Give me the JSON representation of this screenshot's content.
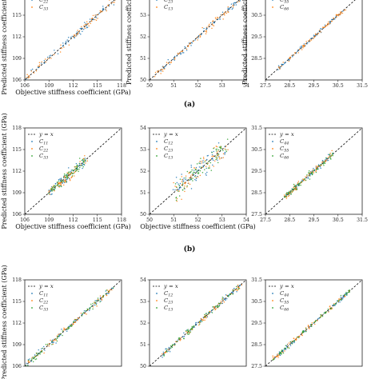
{
  "figure": {
    "row_labels": [
      "(a)",
      "(b)"
    ]
  },
  "colors": {
    "c1": "#1f77b4",
    "c2": "#ff7f0e",
    "c3": "#2ca02c",
    "identity": "#000000"
  },
  "chart_data": [
    {
      "type": "scatter",
      "row": 0,
      "col": 0,
      "xlabel": "Objective stiffness coefficient (GPa)",
      "ylabel": "Predicted stiffness coefficient (GPa)",
      "xlim": [
        106,
        118
      ],
      "ylim": [
        106,
        118
      ],
      "xticks": [
        "106",
        "109",
        "112",
        "115",
        "118"
      ],
      "yticks": [
        "106",
        "109",
        "112",
        "115"
      ],
      "legend": [
        "C22",
        "C33"
      ],
      "series": [
        {
          "name": "C22",
          "range": [
            106,
            118
          ],
          "spread": 0.35
        },
        {
          "name": "C33",
          "range": [
            106,
            118
          ],
          "spread": 0.35
        }
      ]
    },
    {
      "type": "scatter",
      "row": 0,
      "col": 1,
      "xlabel": "",
      "ylabel": "Predicted stiffness coefficient",
      "xlim": [
        50,
        54
      ],
      "ylim": [
        50,
        54
      ],
      "xticks": [
        "50",
        "51",
        "52",
        "53",
        "54"
      ],
      "yticks": [
        "50",
        "51",
        "52",
        "53"
      ],
      "legend": [
        "C23",
        "C13"
      ],
      "series": [
        {
          "name": "C23",
          "range": [
            50.2,
            54
          ],
          "spread": 0.12
        },
        {
          "name": "C13",
          "range": [
            50.2,
            54
          ],
          "spread": 0.12
        }
      ]
    },
    {
      "type": "scatter",
      "row": 0,
      "col": 2,
      "xlabel": "",
      "ylabel": "Predicted stiffness coefficient",
      "xlim": [
        27.5,
        31.5
      ],
      "ylim": [
        27.5,
        31.5
      ],
      "xticks": [
        "27.5",
        "28.5",
        "29.5",
        "30.5",
        "31.5"
      ],
      "yticks": [
        "28.5",
        "29.5",
        "30.5"
      ],
      "legend": [
        "C55",
        "C66"
      ],
      "series": [
        {
          "name": "C55",
          "range": [
            28,
            30.8
          ],
          "spread": 0.06
        },
        {
          "name": "C66",
          "range": [
            28,
            30.8
          ],
          "spread": 0.06
        }
      ]
    },
    {
      "type": "scatter",
      "row": 1,
      "col": 0,
      "xlabel": "Objective stiffness coefficient (GPa)",
      "ylabel": "Predicted stiffness coefficient (GPa)",
      "xlim": [
        106,
        118
      ],
      "ylim": [
        106,
        118
      ],
      "xticks": [
        "106",
        "109",
        "112",
        "115",
        "118"
      ],
      "yticks": [
        "106",
        "109",
        "112",
        "115",
        "118"
      ],
      "legend": [
        "y = x",
        "C11",
        "C22",
        "C33"
      ],
      "series": [
        {
          "name": "C11",
          "range": [
            109,
            113.5
          ],
          "spread": 0.5
        },
        {
          "name": "C22",
          "range": [
            109,
            113.5
          ],
          "spread": 0.5
        },
        {
          "name": "C33",
          "range": [
            109,
            113.5
          ],
          "spread": 0.5
        }
      ]
    },
    {
      "type": "scatter",
      "row": 1,
      "col": 1,
      "xlabel": "Objective stiffness coefficient (GPa)",
      "ylabel": "",
      "xlim": [
        50,
        54
      ],
      "ylim": [
        50,
        54
      ],
      "xticks": [
        "50",
        "51",
        "52",
        "53",
        "54"
      ],
      "yticks": [
        "50",
        "51",
        "52",
        "53",
        "54"
      ],
      "legend": [
        "y = x",
        "C12",
        "C23",
        "C13"
      ],
      "series": [
        {
          "name": "C12",
          "range": [
            51,
            53.2
          ],
          "spread": 0.35
        },
        {
          "name": "C23",
          "range": [
            51,
            53.2
          ],
          "spread": 0.35
        },
        {
          "name": "C13",
          "range": [
            51,
            53.2
          ],
          "spread": 0.35
        }
      ]
    },
    {
      "type": "scatter",
      "row": 1,
      "col": 2,
      "xlabel": "",
      "ylabel": "",
      "xlim": [
        27.5,
        31.5
      ],
      "ylim": [
        27.5,
        31.5
      ],
      "xticks": [
        "27.5",
        "28.5",
        "29.5",
        "30.5",
        "31.5"
      ],
      "yticks": [
        "27.5",
        "28.5",
        "29.5",
        "30.5",
        "31.5"
      ],
      "legend": [
        "y = x",
        "C44",
        "C55",
        "C66"
      ],
      "series": [
        {
          "name": "C44",
          "range": [
            28.3,
            30.3
          ],
          "spread": 0.1
        },
        {
          "name": "C55",
          "range": [
            28.3,
            30.3
          ],
          "spread": 0.1
        },
        {
          "name": "C66",
          "range": [
            28.3,
            30.3
          ],
          "spread": 0.1
        }
      ]
    },
    {
      "type": "scatter",
      "row": 2,
      "col": 0,
      "xlabel": "",
      "ylabel": "Predicted stiffness coefficient (GPa)",
      "xlim": [
        106,
        118
      ],
      "ylim": [
        106,
        118
      ],
      "xticks": [],
      "yticks": [
        "106",
        "109",
        "112",
        "115",
        "118"
      ],
      "legend": [
        "y = x",
        "C11",
        "C22",
        "C33"
      ],
      "series": [
        {
          "name": "C11",
          "range": [
            106,
            117
          ],
          "spread": 0.3
        },
        {
          "name": "C22",
          "range": [
            106,
            117
          ],
          "spread": 0.3
        },
        {
          "name": "C33",
          "range": [
            106,
            117
          ],
          "spread": 0.3
        }
      ]
    },
    {
      "type": "scatter",
      "row": 2,
      "col": 1,
      "xlabel": "",
      "ylabel": "",
      "xlim": [
        50,
        54
      ],
      "ylim": [
        50,
        54
      ],
      "xticks": [],
      "yticks": [
        "50",
        "51",
        "52",
        "53",
        "54"
      ],
      "legend": [
        "y = x",
        "C12",
        "C23",
        "C13"
      ],
      "series": [
        {
          "name": "C12",
          "range": [
            50.5,
            53.8
          ],
          "spread": 0.1
        },
        {
          "name": "C23",
          "range": [
            50.5,
            53.8
          ],
          "spread": 0.1
        },
        {
          "name": "C13",
          "range": [
            50.5,
            53.8
          ],
          "spread": 0.1
        }
      ]
    },
    {
      "type": "scatter",
      "row": 2,
      "col": 2,
      "xlabel": "",
      "ylabel": "",
      "xlim": [
        27.5,
        31.5
      ],
      "ylim": [
        27.5,
        31.5
      ],
      "xticks": [],
      "yticks": [
        "27.5",
        "28.5",
        "29.5",
        "30.5",
        "31.5"
      ],
      "legend": [
        "y = x",
        "C44",
        "C55",
        "C66"
      ],
      "series": [
        {
          "name": "C44",
          "range": [
            27.8,
            31
          ],
          "spread": 0.08
        },
        {
          "name": "C55",
          "range": [
            27.8,
            31
          ],
          "spread": 0.08
        },
        {
          "name": "C66",
          "range": [
            27.8,
            31
          ],
          "spread": 0.08
        }
      ]
    }
  ]
}
